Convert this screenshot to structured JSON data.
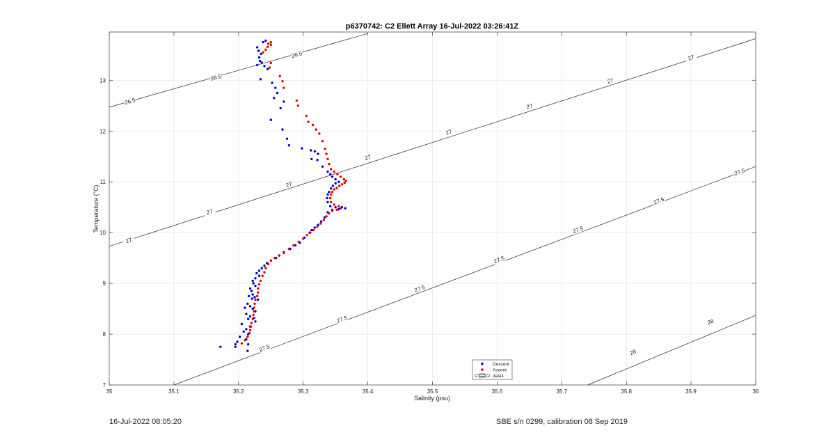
{
  "footer": {
    "timestamp": "16-Jul-2022 08:05:20",
    "calibration": "SBE s/n 0299, calibration 08 Sep 2019"
  },
  "chart_data": {
    "type": "scatter",
    "title": "p6370742: C2 Ellett Array 16-Jul-2022 03:26:41Z",
    "xlabel": "Salinity (psu)",
    "ylabel": "Temperature (°C)",
    "xlim": [
      35,
      36
    ],
    "ylim": [
      7,
      13.95
    ],
    "xticks": [
      35,
      35.1,
      35.2,
      35.3,
      35.4,
      35.5,
      35.6,
      35.7,
      35.8,
      35.9,
      36
    ],
    "yticks": [
      7,
      8,
      9,
      10,
      11,
      12,
      13
    ],
    "grid": true,
    "legend_position": "bottom-center",
    "legend": [
      "Descent",
      "Ascent",
      "data1"
    ],
    "colors": {
      "descent": "#0000cc",
      "ascent": "#dd0000",
      "contour": "#222222"
    },
    "density_contours": [
      {
        "label": "26.5",
        "points": [
          [
            35.0,
            12.47
          ],
          [
            35.4,
            13.92
          ]
        ]
      },
      {
        "label": "27",
        "points": [
          [
            35.0,
            9.73
          ],
          [
            36.0,
            13.82
          ]
        ]
      },
      {
        "label": "27.5",
        "points": [
          [
            35.1,
            7.0
          ],
          [
            36.0,
            11.3
          ]
        ]
      },
      {
        "label": "28",
        "points": [
          [
            35.74,
            7.0
          ],
          [
            36.0,
            8.37
          ]
        ]
      }
    ],
    "contour_label_positions": [
      {
        "label": "26.5",
        "s": 35.032,
        "t": 12.59
      },
      {
        "label": "26.5",
        "s": 35.165,
        "t": 13.06
      },
      {
        "label": "26.5",
        "s": 35.29,
        "t": 13.51
      },
      {
        "label": "27",
        "s": 35.03,
        "t": 9.85
      },
      {
        "label": "27",
        "s": 35.155,
        "t": 10.41
      },
      {
        "label": "27",
        "s": 35.278,
        "t": 10.95
      },
      {
        "label": "27",
        "s": 35.4,
        "t": 11.48
      },
      {
        "label": "27",
        "s": 35.525,
        "t": 11.98
      },
      {
        "label": "27",
        "s": 35.65,
        "t": 12.49
      },
      {
        "label": "27",
        "s": 35.775,
        "t": 12.99
      },
      {
        "label": "27",
        "s": 35.9,
        "t": 13.45
      },
      {
        "label": "27.5",
        "s": 35.24,
        "t": 7.73
      },
      {
        "label": "27.5",
        "s": 35.36,
        "t": 8.3
      },
      {
        "label": "27.5",
        "s": 35.48,
        "t": 8.9
      },
      {
        "label": "27.5",
        "s": 35.603,
        "t": 9.47
      },
      {
        "label": "27.5",
        "s": 35.725,
        "t": 10.06
      },
      {
        "label": "27.5",
        "s": 35.85,
        "t": 10.63
      },
      {
        "label": "27.5",
        "s": 35.975,
        "t": 11.2
      },
      {
        "label": "28",
        "s": 35.81,
        "t": 7.65
      },
      {
        "label": "28",
        "s": 35.93,
        "t": 8.25
      }
    ],
    "series": [
      {
        "name": "Descent",
        "points": [
          [
            35.242,
            13.78
          ],
          [
            35.238,
            13.75
          ],
          [
            35.229,
            13.65
          ],
          [
            35.231,
            13.58
          ],
          [
            35.235,
            13.52
          ],
          [
            35.232,
            13.45
          ],
          [
            35.233,
            13.38
          ],
          [
            35.236,
            13.35
          ],
          [
            35.229,
            13.3
          ],
          [
            35.24,
            13.28
          ],
          [
            35.245,
            13.22
          ],
          [
            35.234,
            13.02
          ],
          [
            35.252,
            12.95
          ],
          [
            35.257,
            12.85
          ],
          [
            35.26,
            12.75
          ],
          [
            35.255,
            12.65
          ],
          [
            35.27,
            12.58
          ],
          [
            35.265,
            12.45
          ],
          [
            35.25,
            12.22
          ],
          [
            35.268,
            12.03
          ],
          [
            35.275,
            11.85
          ],
          [
            35.278,
            11.72
          ],
          [
            35.298,
            11.66
          ],
          [
            35.312,
            11.62
          ],
          [
            35.318,
            11.6
          ],
          [
            35.323,
            11.55
          ],
          [
            35.313,
            11.45
          ],
          [
            35.322,
            11.43
          ],
          [
            35.33,
            11.3
          ],
          [
            35.338,
            11.2
          ],
          [
            35.342,
            11.15
          ],
          [
            35.345,
            11.1
          ],
          [
            35.35,
            11.05
          ],
          [
            35.355,
            11.0
          ],
          [
            35.35,
            10.97
          ],
          [
            35.346,
            10.92
          ],
          [
            35.343,
            10.87
          ],
          [
            35.34,
            10.8
          ],
          [
            35.338,
            10.75
          ],
          [
            35.337,
            10.68
          ],
          [
            35.338,
            10.6
          ],
          [
            35.342,
            10.52
          ],
          [
            35.35,
            10.5
          ],
          [
            35.36,
            10.5
          ],
          [
            35.365,
            10.48
          ],
          [
            35.355,
            10.46
          ],
          [
            35.345,
            10.45
          ],
          [
            35.338,
            10.4
          ],
          [
            35.333,
            10.3
          ],
          [
            35.328,
            10.22
          ],
          [
            35.323,
            10.15
          ],
          [
            35.318,
            10.1
          ],
          [
            35.313,
            10.05
          ],
          [
            35.31,
            10.0
          ],
          [
            35.302,
            9.9
          ],
          [
            35.295,
            9.8
          ],
          [
            35.288,
            9.75
          ],
          [
            35.28,
            9.68
          ],
          [
            35.27,
            9.6
          ],
          [
            35.263,
            9.55
          ],
          [
            35.258,
            9.5
          ],
          [
            35.25,
            9.45
          ],
          [
            35.244,
            9.4
          ],
          [
            35.24,
            9.35
          ],
          [
            35.236,
            9.3
          ],
          [
            35.232,
            9.25
          ],
          [
            35.228,
            9.2
          ],
          [
            35.232,
            9.15
          ],
          [
            35.226,
            9.1
          ],
          [
            35.222,
            9.05
          ],
          [
            35.223,
            9.0
          ],
          [
            35.226,
            8.95
          ],
          [
            35.218,
            8.9
          ],
          [
            35.22,
            8.85
          ],
          [
            35.222,
            8.78
          ],
          [
            35.216,
            8.75
          ],
          [
            35.225,
            8.73
          ],
          [
            35.221,
            8.7
          ],
          [
            35.23,
            8.68
          ],
          [
            35.214,
            8.6
          ],
          [
            35.218,
            8.55
          ],
          [
            35.21,
            8.52
          ],
          [
            35.222,
            8.5
          ],
          [
            35.226,
            8.45
          ],
          [
            35.212,
            8.4
          ],
          [
            35.218,
            8.35
          ],
          [
            35.224,
            8.32
          ],
          [
            35.215,
            8.3
          ],
          [
            35.226,
            8.25
          ],
          [
            35.205,
            8.2
          ],
          [
            35.218,
            8.15
          ],
          [
            35.212,
            8.1
          ],
          [
            35.208,
            8.05
          ],
          [
            35.215,
            8.0
          ],
          [
            35.202,
            7.95
          ],
          [
            35.212,
            7.9
          ],
          [
            35.198,
            7.85
          ],
          [
            35.195,
            7.8
          ],
          [
            35.215,
            7.8
          ],
          [
            35.172,
            7.75
          ],
          [
            35.195,
            7.75
          ],
          [
            35.214,
            7.67
          ]
        ]
      },
      {
        "name": "Ascent",
        "points": [
          [
            35.25,
            13.75
          ],
          [
            35.246,
            13.72
          ],
          [
            35.25,
            13.7
          ],
          [
            35.245,
            13.66
          ],
          [
            35.242,
            13.6
          ],
          [
            35.238,
            13.55
          ],
          [
            35.25,
            13.34
          ],
          [
            35.248,
            13.25
          ],
          [
            35.264,
            13.08
          ],
          [
            35.268,
            12.98
          ],
          [
            35.27,
            12.85
          ],
          [
            35.29,
            12.6
          ],
          [
            35.292,
            12.5
          ],
          [
            35.305,
            12.3
          ],
          [
            35.308,
            12.18
          ],
          [
            35.315,
            12.12
          ],
          [
            35.32,
            12.03
          ],
          [
            35.325,
            11.95
          ],
          [
            35.33,
            11.8
          ],
          [
            35.334,
            11.65
          ],
          [
            35.336,
            11.55
          ],
          [
            35.338,
            11.45
          ],
          [
            35.34,
            11.35
          ],
          [
            35.343,
            11.25
          ],
          [
            35.348,
            11.2
          ],
          [
            35.353,
            11.15
          ],
          [
            35.358,
            11.1
          ],
          [
            35.363,
            11.05
          ],
          [
            35.366,
            11.02
          ],
          [
            35.364,
            10.98
          ],
          [
            35.36,
            10.95
          ],
          [
            35.356,
            10.92
          ],
          [
            35.352,
            10.88
          ],
          [
            35.348,
            10.85
          ],
          [
            35.345,
            10.8
          ],
          [
            35.343,
            10.75
          ],
          [
            35.342,
            10.68
          ],
          [
            35.343,
            10.6
          ],
          [
            35.348,
            10.55
          ],
          [
            35.355,
            10.52
          ],
          [
            35.358,
            10.48
          ],
          [
            35.352,
            10.45
          ],
          [
            35.345,
            10.43
          ],
          [
            35.34,
            10.38
          ],
          [
            35.336,
            10.32
          ],
          [
            35.332,
            10.25
          ],
          [
            35.327,
            10.18
          ],
          [
            35.322,
            10.12
          ],
          [
            35.316,
            10.05
          ],
          [
            35.311,
            10.0
          ],
          [
            35.306,
            9.95
          ],
          [
            35.3,
            9.88
          ],
          [
            35.293,
            9.82
          ],
          [
            35.285,
            9.75
          ],
          [
            35.278,
            9.68
          ],
          [
            35.27,
            9.62
          ],
          [
            35.263,
            9.55
          ],
          [
            35.256,
            9.5
          ],
          [
            35.25,
            9.45
          ],
          [
            35.246,
            9.38
          ],
          [
            35.242,
            9.3
          ],
          [
            35.24,
            9.22
          ],
          [
            35.237,
            9.15
          ],
          [
            35.234,
            9.05
          ],
          [
            35.232,
            8.98
          ],
          [
            35.23,
            8.9
          ],
          [
            35.23,
            8.82
          ],
          [
            35.229,
            8.75
          ],
          [
            35.226,
            8.68
          ],
          [
            35.225,
            8.6
          ],
          [
            35.224,
            8.52
          ],
          [
            35.224,
            8.45
          ],
          [
            35.223,
            8.38
          ],
          [
            35.222,
            8.3
          ],
          [
            35.22,
            8.22
          ],
          [
            35.219,
            8.15
          ],
          [
            35.218,
            8.08
          ],
          [
            35.217,
            8.02
          ],
          [
            35.214,
            7.95
          ],
          [
            35.21,
            7.88
          ],
          [
            35.205,
            7.82
          ]
        ]
      }
    ]
  }
}
